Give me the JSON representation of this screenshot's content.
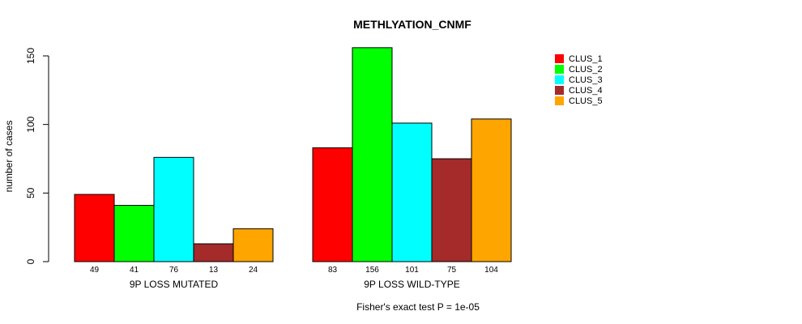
{
  "chart_data": {
    "type": "bar",
    "title": "METHLYATION_CNMF",
    "ylabel": "number of cases",
    "xlabel": "",
    "ylim": [
      0,
      150
    ],
    "yticks": [
      0,
      50,
      100,
      150
    ],
    "groups": [
      "9P LOSS MUTATED",
      "9P LOSS WILD-TYPE"
    ],
    "series": [
      {
        "name": "CLUS_1",
        "color": "#ff0000",
        "values": [
          49,
          83
        ]
      },
      {
        "name": "CLUS_2",
        "color": "#00ff00",
        "values": [
          41,
          156
        ]
      },
      {
        "name": "CLUS_3",
        "color": "#00ffff",
        "values": [
          76,
          101
        ]
      },
      {
        "name": "CLUS_4",
        "color": "#a52a2a",
        "values": [
          13,
          75
        ]
      },
      {
        "name": "CLUS_5",
        "color": "#ffa500",
        "values": [
          24,
          104
        ]
      }
    ],
    "legend_position": "top-right",
    "footnote": "Fisher's exact test P = 1e-05"
  }
}
